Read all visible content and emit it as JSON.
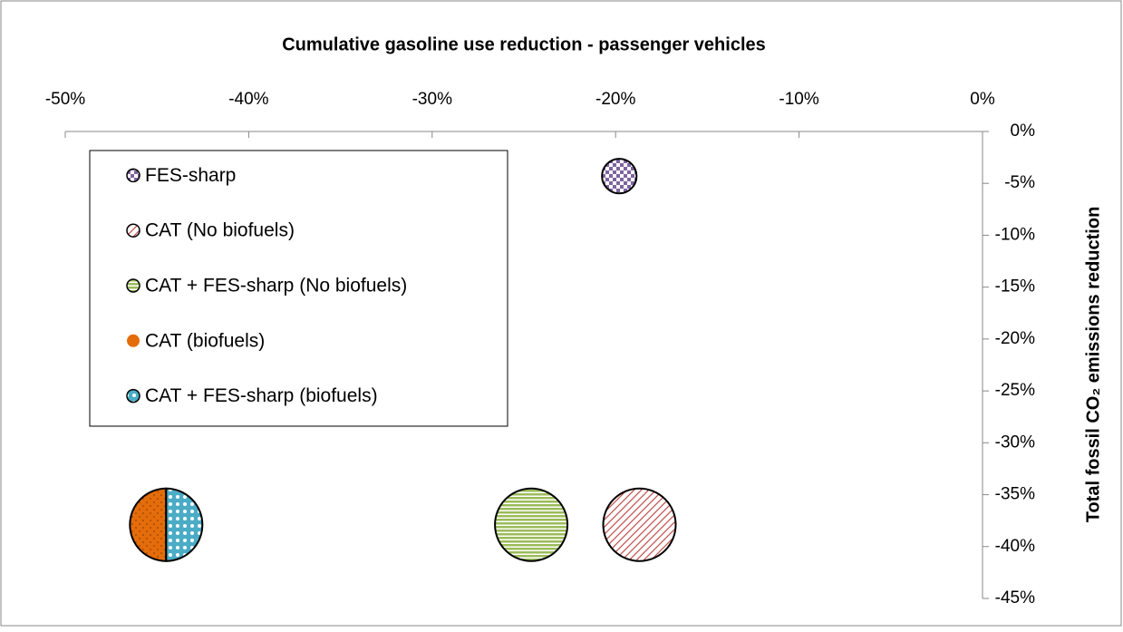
{
  "chart_data": {
    "type": "bubble",
    "title": "Cumulative gasoline use reduction - passenger vehicles",
    "y_label": "Total fossil CO₂ emissions reduction",
    "xlim": [
      -50,
      0
    ],
    "xticks": [
      {
        "value": -50,
        "label": "-50%"
      },
      {
        "value": -40,
        "label": "-40%"
      },
      {
        "value": -30,
        "label": "-30%"
      },
      {
        "value": -20,
        "label": "-20%"
      },
      {
        "value": -10,
        "label": "-10%"
      },
      {
        "value": 0,
        "label": "0%"
      }
    ],
    "ylim": [
      -45,
      0
    ],
    "yticks": [
      {
        "value": 0,
        "label": "0%"
      },
      {
        "value": -5,
        "label": "-5%"
      },
      {
        "value": -10,
        "label": "-10%"
      },
      {
        "value": -15,
        "label": "-15%"
      },
      {
        "value": -20,
        "label": "-20%"
      },
      {
        "value": -25,
        "label": "-25%"
      },
      {
        "value": -30,
        "label": "-30%"
      },
      {
        "value": -35,
        "label": "-35%"
      },
      {
        "value": -40,
        "label": "-40%"
      },
      {
        "value": -45,
        "label": "-45%"
      }
    ],
    "series": [
      {
        "name": "FES-sharp",
        "color": "#7f64a0",
        "pattern": "checker",
        "x": [
          -19.8
        ],
        "values": [
          -4.3
        ],
        "sizes": [
          1
        ]
      },
      {
        "name": "CAT (No biofuels)",
        "color": "#c0504d",
        "pattern": "diagonal",
        "x": [
          -18.7
        ],
        "values": [
          -37.9
        ],
        "sizes": [
          4.4
        ]
      },
      {
        "name": "CAT + FES-sharp (No biofuels)",
        "color": "#9bbb59",
        "pattern": "horizontal",
        "x": [
          -24.6
        ],
        "values": [
          -37.9
        ],
        "sizes": [
          4.4
        ]
      },
      {
        "name": "CAT (biofuels)",
        "color": "#e46c0a",
        "pattern": "dots",
        "half": "left",
        "x": [
          -44.5
        ],
        "values": [
          -37.9
        ],
        "sizes": [
          4.4
        ]
      },
      {
        "name": "CAT + FES-sharp (biofuels)",
        "color": "#4bacc6",
        "pattern": "circles",
        "half": "right",
        "x": [
          -44.5
        ],
        "values": [
          -37.9
        ],
        "sizes": [
          4.4
        ]
      }
    ],
    "legend": "upper-left"
  }
}
